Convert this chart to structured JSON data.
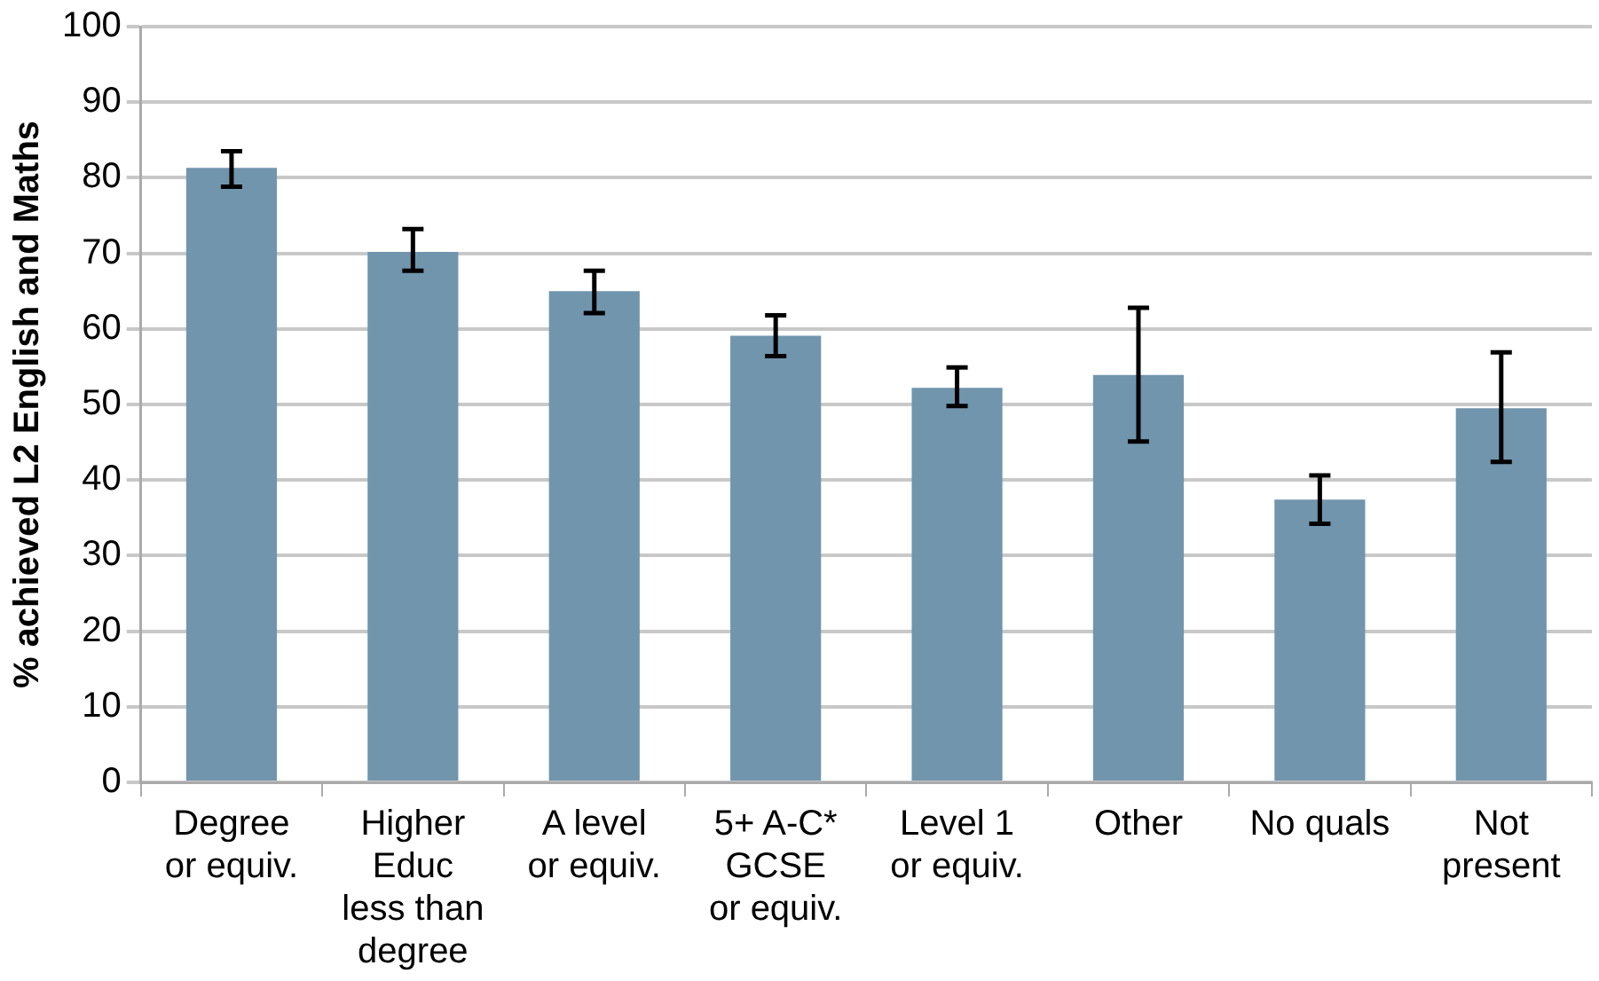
{
  "chart_data": {
    "type": "bar",
    "ylabel": "% achieved L2 English and Maths",
    "categories": [
      "Degree\nor equiv.",
      "Higher\nEduc\nless than\ndegree",
      "A level\nor equiv.",
      "5+ A-C*\nGCSE\nor equiv.",
      "Level 1\nor equiv.",
      "Other",
      "No quals",
      "Not\npresent"
    ],
    "values": [
      81.3,
      70.2,
      65.0,
      59.1,
      52.2,
      53.9,
      37.4,
      49.5
    ],
    "errors": [
      [
        78.8,
        83.5
      ],
      [
        67.7,
        73.2
      ],
      [
        62.1,
        67.7
      ],
      [
        56.4,
        61.8
      ],
      [
        49.8,
        54.9
      ],
      [
        45.1,
        62.8
      ],
      [
        34.2,
        40.6
      ],
      [
        42.4,
        56.9
      ]
    ],
    "color": "#7195ad",
    "ylim": [
      0,
      100
    ],
    "yticks": [
      0,
      10,
      20,
      30,
      40,
      50,
      60,
      70,
      80,
      90,
      100
    ],
    "grid": "y",
    "legend": false
  }
}
